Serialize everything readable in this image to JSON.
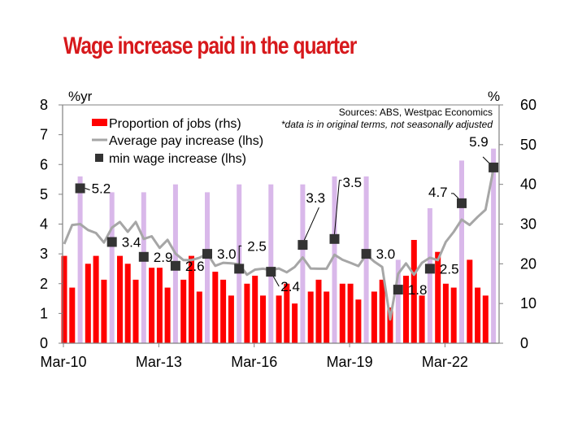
{
  "chart_data": {
    "type": "bar+line",
    "title": "Wage increase paid in the quarter",
    "left_axis": {
      "unit": "%yr",
      "ylim": [
        0,
        8
      ],
      "ticks": [
        "0",
        "1",
        "2",
        "3",
        "4",
        "5",
        "6",
        "7",
        "8"
      ]
    },
    "right_axis": {
      "unit": "%",
      "ylim": [
        0,
        60
      ],
      "ticks": [
        "0",
        "10",
        "20",
        "30",
        "40",
        "50",
        "60"
      ]
    },
    "x_tick_labels": [
      "Mar-10",
      "Mar-13",
      "Mar-16",
      "Mar-19",
      "Mar-22"
    ],
    "x_tick_quarter_index": [
      0,
      12,
      24,
      36,
      48
    ],
    "grid": false,
    "legend_placement": "top-left",
    "sources": "Sources: ABS, Westpac Economics",
    "note": "*data is in original terms, not seasonally adjusted",
    "quarters": [
      "Mar-10",
      "Jun-10",
      "Sep-10",
      "Dec-10",
      "Mar-11",
      "Jun-11",
      "Sep-11",
      "Dec-11",
      "Mar-12",
      "Jun-12",
      "Sep-12",
      "Dec-12",
      "Mar-13",
      "Jun-13",
      "Sep-13",
      "Dec-13",
      "Mar-14",
      "Jun-14",
      "Sep-14",
      "Dec-14",
      "Mar-15",
      "Jun-15",
      "Sep-15",
      "Dec-15",
      "Mar-16",
      "Jun-16",
      "Sep-16",
      "Dec-16",
      "Mar-17",
      "Jun-17",
      "Sep-17",
      "Dec-17",
      "Mar-18",
      "Jun-18",
      "Sep-18",
      "Dec-18",
      "Mar-19",
      "Jun-19",
      "Sep-19",
      "Dec-19",
      "Mar-20",
      "Jun-20",
      "Sep-20",
      "Dec-20",
      "Mar-21",
      "Jun-21",
      "Sep-21",
      "Dec-21",
      "Mar-22",
      "Jun-22",
      "Sep-22",
      "Dec-22",
      "Mar-23",
      "Jun-23",
      "Sep-23"
    ],
    "series": [
      {
        "name": "Proportion of jobs (rhs)",
        "type": "bar",
        "axis": "right",
        "color": "#FF0000",
        "sep_quarter_color": "#D9B8EA",
        "values": [
          22,
          14,
          42,
          20,
          22,
          16,
          38,
          22,
          20,
          16,
          38,
          19,
          19,
          14,
          40,
          16,
          22,
          13,
          38,
          18,
          16,
          12,
          40,
          15,
          17,
          12,
          40,
          12,
          15,
          10,
          40,
          13,
          16,
          13,
          42,
          15,
          15,
          11,
          42,
          13,
          16,
          9,
          21,
          17,
          26,
          12,
          34,
          23,
          15,
          14,
          46,
          21,
          14,
          12,
          49
        ]
      },
      {
        "name": "Average pay increase (lhs)",
        "type": "line",
        "axis": "left",
        "color": "#A6A6A6",
        "values": [
          3.33,
          3.97,
          4.0,
          3.8,
          3.7,
          3.38,
          3.88,
          4.07,
          3.74,
          4.07,
          3.5,
          3.59,
          3.2,
          3.47,
          3.01,
          2.79,
          2.79,
          2.87,
          3.01,
          2.6,
          2.7,
          2.68,
          2.65,
          2.3,
          2.47,
          2.5,
          2.46,
          2.51,
          2.38,
          2.56,
          2.88,
          2.51,
          2.5,
          2.5,
          2.97,
          2.8,
          2.7,
          2.59,
          2.97,
          2.74,
          2.56,
          0.8,
          2.33,
          2.68,
          2.3,
          2.7,
          2.87,
          2.79,
          3.4,
          3.74,
          4.15,
          3.97,
          4.24,
          4.48,
          5.85
        ]
      },
      {
        "name": "min wage increase (lhs)",
        "type": "scatter",
        "axis": "left",
        "color": "#333333",
        "points": [
          {
            "quarter": "Sep-10",
            "value": 5.2,
            "label": "5.2"
          },
          {
            "quarter": "Sep-11",
            "value": 3.4,
            "label": "3.4"
          },
          {
            "quarter": "Sep-12",
            "value": 2.9,
            "label": "2.9"
          },
          {
            "quarter": "Sep-13",
            "value": 2.6,
            "label": "2.6"
          },
          {
            "quarter": "Sep-14",
            "value": 3.0,
            "label": "3.0"
          },
          {
            "quarter": "Sep-15",
            "value": 2.5,
            "label": "2.5"
          },
          {
            "quarter": "Sep-16",
            "value": 2.4,
            "label": "2.4"
          },
          {
            "quarter": "Sep-17",
            "value": 3.3,
            "label": "3.3"
          },
          {
            "quarter": "Sep-18",
            "value": 3.5,
            "label": "3.5"
          },
          {
            "quarter": "Sep-19",
            "value": 3.0,
            "label": "3.0"
          },
          {
            "quarter": "Sep-20",
            "value": 1.8,
            "label": "1.8"
          },
          {
            "quarter": "Sep-21",
            "value": 2.5,
            "label": "2.5"
          },
          {
            "quarter": "Sep-22",
            "value": 4.7,
            "label": "4.7"
          },
          {
            "quarter": "Sep-23",
            "value": 5.9,
            "label": "5.9"
          }
        ]
      }
    ]
  }
}
